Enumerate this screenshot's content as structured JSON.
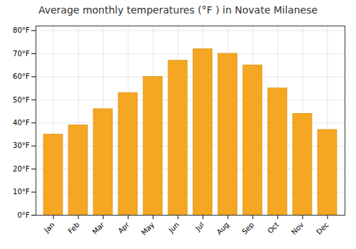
{
  "chart_data": {
    "type": "bar",
    "title": "Average monthly temperatures (°F ) in Novate Milanese",
    "categories": [
      "Jan",
      "Feb",
      "Mar",
      "Apr",
      "May",
      "Jun",
      "Jul",
      "Aug",
      "Sep",
      "Oct",
      "Nov",
      "Dec"
    ],
    "values": [
      35,
      39,
      46,
      53,
      60,
      67,
      72,
      70,
      65,
      55,
      44,
      37
    ],
    "color": "#F5A623",
    "ylim": [
      0,
      82
    ],
    "yticks": [
      {
        "value": 0,
        "label": "0°F"
      },
      {
        "value": 10,
        "label": "10°F"
      },
      {
        "value": 20,
        "label": "20°F"
      },
      {
        "value": 30,
        "label": "30°F"
      },
      {
        "value": 40,
        "label": "40°F"
      },
      {
        "value": 50,
        "label": "50°F"
      },
      {
        "value": 60,
        "label": "60°F"
      },
      {
        "value": 70,
        "label": "70°F"
      },
      {
        "value": 80,
        "label": "80°F"
      }
    ],
    "grid": true
  }
}
